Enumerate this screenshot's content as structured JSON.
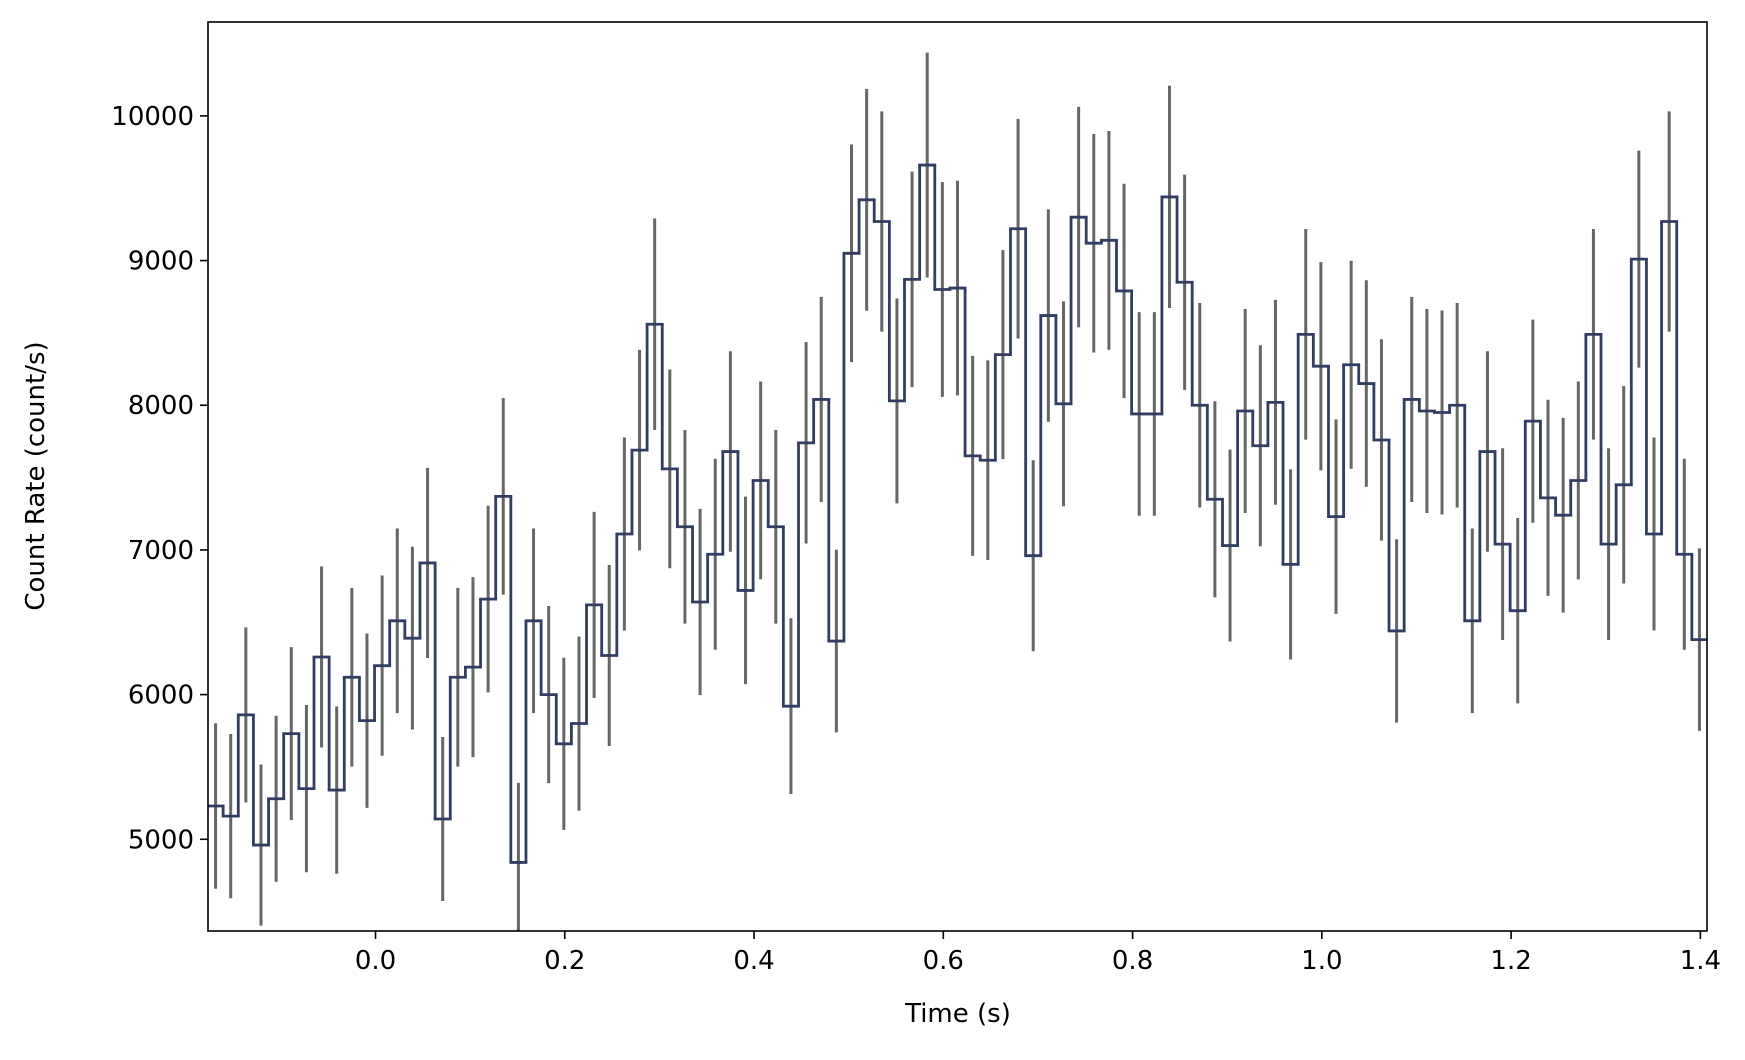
{
  "chart_data": {
    "type": "step",
    "xlabel": "Time (s)",
    "ylabel": "Count Rate (count/s)",
    "xlim": [
      -0.177,
      1.407
    ],
    "ylim": [
      4366,
      10649
    ],
    "xticks": [
      {
        "value": 0,
        "label": "0.0"
      },
      0.2,
      0.4,
      0.6,
      0.8,
      {
        "value": 1,
        "label": "1.0"
      },
      1.2,
      1.4
    ],
    "yticks": [
      5000,
      6000,
      7000,
      8000,
      9000,
      10000
    ],
    "color": "#323d63",
    "error_color": "#666666",
    "x": [
      -0.169,
      -0.153,
      -0.137,
      -0.121,
      -0.105,
      -0.089,
      -0.073,
      -0.057,
      -0.041,
      -0.025,
      -0.009,
      0.007,
      0.023,
      0.039,
      0.055,
      0.071,
      0.087,
      0.103,
      0.119,
      0.135,
      0.151,
      0.167,
      0.183,
      0.199,
      0.215,
      0.231,
      0.247,
      0.263,
      0.279,
      0.295,
      0.311,
      0.327,
      0.343,
      0.359,
      0.375,
      0.391,
      0.407,
      0.423,
      0.439,
      0.455,
      0.471,
      0.487,
      0.503,
      0.519,
      0.535,
      0.551,
      0.567,
      0.583,
      0.599,
      0.615,
      0.631,
      0.647,
      0.663,
      0.679,
      0.695,
      0.711,
      0.727,
      0.743,
      0.759,
      0.775,
      0.791,
      0.807,
      0.823,
      0.839,
      0.855,
      0.871,
      0.887,
      0.903,
      0.919,
      0.935,
      0.951,
      0.967,
      0.983,
      0.999,
      1.015,
      1.031,
      1.047,
      1.063,
      1.079,
      1.095,
      1.111,
      1.127,
      1.143,
      1.159,
      1.175,
      1.191,
      1.207,
      1.223,
      1.239,
      1.255,
      1.271,
      1.287,
      1.303,
      1.319,
      1.335,
      1.351,
      1.367,
      1.383,
      1.399
    ],
    "values": [
      5230,
      5160,
      5860,
      4960,
      5280,
      5730,
      5350,
      6260,
      5340,
      6120,
      5820,
      6200,
      6510,
      6390,
      6910,
      5140,
      6120,
      6190,
      6660,
      7370,
      4840,
      6510,
      6000,
      5660,
      5800,
      6620,
      6270,
      7110,
      7690,
      8560,
      7560,
      7160,
      6640,
      6970,
      7680,
      6720,
      7480,
      7160,
      5920,
      7740,
      8040,
      6370,
      9050,
      9420,
      9270,
      8030,
      8870,
      9660,
      8800,
      8810,
      7650,
      7620,
      8350,
      9220,
      6960,
      8620,
      8010,
      9300,
      9120,
      9140,
      8790,
      7940,
      7940,
      9440,
      8850,
      8000,
      7350,
      7030,
      7960,
      7720,
      8020,
      6900,
      8490,
      8270,
      7230,
      8280,
      8150,
      7760,
      6440,
      8040,
      7960,
      7950,
      8000,
      6510,
      7680,
      7040,
      6580,
      7890,
      7360,
      7240,
      7480,
      8490,
      7040,
      7450,
      9010,
      7110,
      9270,
      6970,
      6380
    ],
    "errors": [
      572,
      568,
      605,
      557,
      574,
      598,
      578,
      626,
      578,
      618,
      603,
      623,
      638,
      632,
      657,
      567,
      618,
      622,
      645,
      679,
      550,
      638,
      612,
      595,
      602,
      643,
      626,
      667,
      693,
      731,
      687,
      669,
      644,
      660,
      693,
      648,
      684,
      669,
      608,
      696,
      709,
      631,
      752,
      767,
      761,
      708,
      745,
      777,
      742,
      742,
      691,
      690,
      722,
      759,
      660,
      734,
      708,
      762,
      755,
      756,
      741,
      704,
      704,
      768,
      744,
      707,
      678,
      663,
      705,
      695,
      708,
      657,
      728,
      719,
      672,
      719,
      714,
      696,
      634,
      709,
      705,
      705,
      707,
      638,
      693,
      663,
      641,
      702,
      678,
      673,
      684,
      728,
      663,
      682,
      750,
      667,
      761,
      660,
      631
    ]
  }
}
